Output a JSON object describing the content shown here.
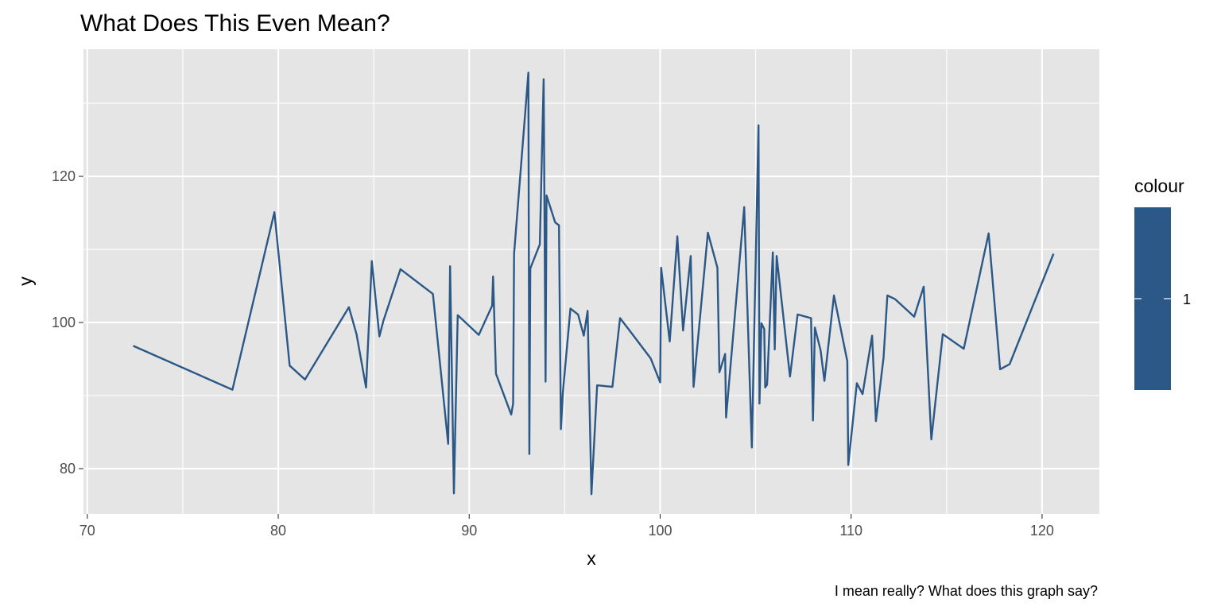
{
  "chart_data": {
    "type": "line",
    "title": "What Does This Even Mean?",
    "caption": "I mean really? What does this graph say?",
    "xlabel": "x",
    "ylabel": "y",
    "xlim": [
      69.8,
      123
    ],
    "ylim": [
      73.8,
      137.4
    ],
    "x_ticks": [
      70,
      80,
      90,
      100,
      110,
      120
    ],
    "x_tick_labels": [
      "70",
      "80",
      "90",
      "100",
      "110",
      "120"
    ],
    "y_ticks": [
      80,
      100,
      120
    ],
    "y_tick_labels": [
      "80",
      "100",
      "120"
    ],
    "grid": true,
    "panel_background": "#e5e5e5",
    "grid_color": "#ffffff",
    "legend": {
      "title": "colour",
      "labels": [
        "1"
      ],
      "position": "right",
      "color": "#2b5886"
    },
    "series": [
      {
        "color": "#2b5886",
        "points": [
          [
            72.4,
            96.8
          ],
          [
            77.6,
            90.8
          ],
          [
            79.8,
            115.1
          ],
          [
            80.6,
            94.1
          ],
          [
            81.4,
            92.2
          ],
          [
            83.7,
            102.1
          ],
          [
            84.1,
            98.4
          ],
          [
            84.6,
            91.1
          ],
          [
            84.9,
            108.4
          ],
          [
            85.3,
            98.1
          ],
          [
            85.5,
            100.2
          ],
          [
            86.4,
            107.3
          ],
          [
            88.1,
            103.9
          ],
          [
            88.9,
            83.4
          ],
          [
            89.0,
            107.7
          ],
          [
            89.2,
            76.6
          ],
          [
            89.4,
            101.0
          ],
          [
            90.5,
            98.3
          ],
          [
            91.2,
            102.3
          ],
          [
            91.25,
            106.3
          ],
          [
            91.4,
            93.0
          ],
          [
            92.2,
            87.4
          ],
          [
            92.3,
            88.9
          ],
          [
            92.35,
            109.4
          ],
          [
            93.1,
            134.2
          ],
          [
            93.15,
            82.0
          ],
          [
            93.2,
            107.4
          ],
          [
            93.7,
            110.7
          ],
          [
            93.9,
            133.3
          ],
          [
            94.0,
            91.9
          ],
          [
            94.05,
            117.4
          ],
          [
            94.5,
            113.7
          ],
          [
            94.7,
            113.3
          ],
          [
            94.8,
            85.4
          ],
          [
            94.9,
            90.3
          ],
          [
            95.3,
            101.9
          ],
          [
            95.7,
            101.1
          ],
          [
            96.0,
            98.2
          ],
          [
            96.2,
            101.6
          ],
          [
            96.4,
            76.5
          ],
          [
            96.7,
            91.4
          ],
          [
            97.5,
            91.2
          ],
          [
            97.9,
            100.6
          ],
          [
            98.4,
            98.9
          ],
          [
            99.5,
            95.1
          ],
          [
            100.0,
            91.8
          ],
          [
            100.05,
            107.5
          ],
          [
            100.5,
            97.4
          ],
          [
            100.9,
            111.8
          ],
          [
            101.2,
            98.9
          ],
          [
            101.6,
            109.1
          ],
          [
            101.75,
            91.2
          ],
          [
            102.5,
            112.3
          ],
          [
            103.0,
            107.5
          ],
          [
            103.1,
            93.2
          ],
          [
            103.4,
            95.7
          ],
          [
            103.45,
            87.0
          ],
          [
            104.4,
            115.8
          ],
          [
            104.8,
            82.9
          ],
          [
            105.15,
            127.0
          ],
          [
            105.2,
            88.9
          ],
          [
            105.3,
            99.9
          ],
          [
            105.45,
            99.1
          ],
          [
            105.5,
            91.1
          ],
          [
            105.6,
            91.5
          ],
          [
            105.9,
            109.6
          ],
          [
            106.0,
            96.3
          ],
          [
            106.1,
            109.1
          ],
          [
            106.8,
            92.6
          ],
          [
            107.2,
            101.1
          ],
          [
            107.9,
            100.6
          ],
          [
            108.0,
            86.6
          ],
          [
            108.1,
            99.3
          ],
          [
            108.4,
            96.2
          ],
          [
            108.6,
            92.0
          ],
          [
            109.1,
            103.7
          ],
          [
            109.8,
            94.7
          ],
          [
            109.85,
            80.5
          ],
          [
            110.3,
            91.7
          ],
          [
            110.6,
            90.2
          ],
          [
            111.1,
            98.2
          ],
          [
            111.3,
            86.5
          ],
          [
            111.7,
            95.2
          ],
          [
            111.9,
            103.7
          ],
          [
            112.3,
            103.2
          ],
          [
            113.3,
            100.8
          ],
          [
            113.8,
            104.9
          ],
          [
            114.2,
            84.0
          ],
          [
            114.8,
            98.4
          ],
          [
            115.9,
            96.4
          ],
          [
            117.2,
            112.2
          ],
          [
            117.8,
            93.6
          ],
          [
            118.3,
            94.3
          ],
          [
            120.6,
            109.4
          ]
        ]
      }
    ]
  }
}
